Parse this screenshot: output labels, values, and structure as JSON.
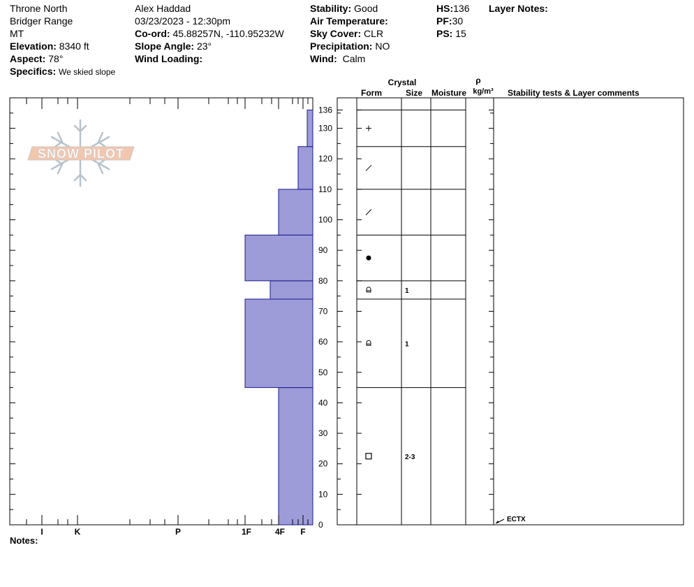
{
  "header": {
    "location": "Throne North",
    "range": "Bridger Range",
    "state": "MT",
    "elevation_label": "Elevation:",
    "elevation_value": "8340 ft",
    "aspect_label": "Aspect:",
    "aspect_value": "78°",
    "specifics_label": "Specifics:",
    "specifics_value": "We skied slope",
    "observer": "Alex Haddad",
    "datetime": "03/23/2023 - 12:30pm",
    "coord_label": "Co-ord:",
    "coord_value": "45.88257N, -110.95232W",
    "slope_label": "Slope Angle:",
    "slope_value": "23°",
    "wind_loading_label": "Wind Loading:",
    "stability_label": "Stability:",
    "stability_value": "Good",
    "air_temp_label": "Air Temperature:",
    "sky_label": "Sky Cover:",
    "sky_value": "CLR",
    "precip_label": "Precipitation:",
    "precip_value": "NO",
    "wind_label": "Wind:",
    "wind_value": "Calm",
    "hs_label": "HS:",
    "hs_value": "136",
    "pf_label": "PF:",
    "pf_value": "30",
    "ps_label": "PS:",
    "ps_value": "15",
    "layer_notes_label": "Layer Notes:"
  },
  "logo_text": "SNOW PILOT",
  "table_headers": {
    "crystal": "Crystal",
    "form": "Form",
    "size": "Size",
    "moisture": "Moisture",
    "rho": "ρ",
    "density_unit": "kg/m³",
    "stability_comments": "Stability tests & Layer comments"
  },
  "notes_label": "Notes:",
  "chart_data": {
    "type": "bar",
    "orientation": "horizontal",
    "description_units": "height in cm (y), hand hardness (x)",
    "y_axis": {
      "range": [
        0,
        136
      ],
      "ticks": [
        0,
        10,
        20,
        30,
        40,
        50,
        60,
        70,
        80,
        90,
        100,
        110,
        120,
        130,
        136
      ]
    },
    "x_axis": {
      "labels": [
        "I",
        "K",
        "P",
        "1F",
        "4F",
        "F"
      ]
    },
    "layers": [
      {
        "bottom": 0,
        "top": 45,
        "hardness": "4F",
        "form": "square",
        "size": "2-3"
      },
      {
        "bottom": 45,
        "top": 74,
        "hardness": "1F",
        "form": "faceted-rounded",
        "size": "1"
      },
      {
        "bottom": 74,
        "top": 80,
        "hardness": "4F+",
        "form": "faceted-rounded",
        "size": "1"
      },
      {
        "bottom": 80,
        "top": 95,
        "hardness": "1F",
        "form": "rounded",
        "size": ""
      },
      {
        "bottom": 95,
        "top": 110,
        "hardness": "4F",
        "form": "decomposing",
        "size": ""
      },
      {
        "bottom": 110,
        "top": 124,
        "hardness": "F+",
        "form": "decomposing",
        "size": ""
      },
      {
        "bottom": 124,
        "top": 136,
        "hardness": "F-",
        "form": "precip",
        "size": ""
      }
    ],
    "tests": [
      {
        "height": 0,
        "label": "ECTX"
      }
    ]
  },
  "colors": {
    "hardness_fill": "#9d9bd8",
    "hardness_stroke": "#1a1a8c"
  }
}
